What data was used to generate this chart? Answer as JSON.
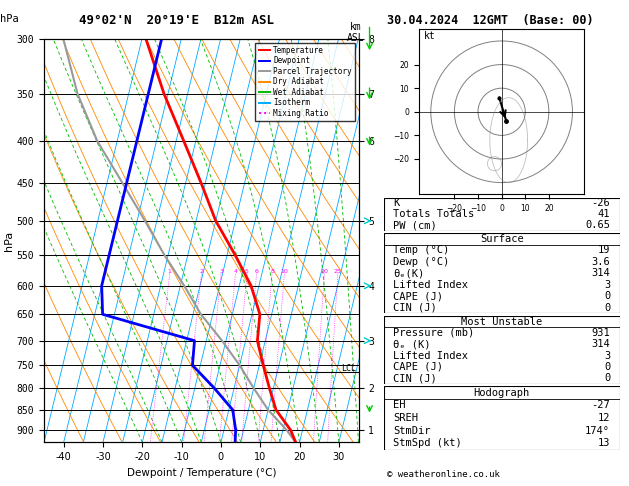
{
  "title_left": "49°02'N  20°19'E  B12m ASL",
  "title_right": "30.04.2024  12GMT  (Base: 00)",
  "xlabel": "Dewpoint / Temperature (°C)",
  "ylabel_left": "hPa",
  "pressure_levels": [
    300,
    350,
    400,
    450,
    500,
    550,
    600,
    650,
    700,
    750,
    800,
    850,
    900
  ],
  "temp_xlim": [
    -45,
    35
  ],
  "km_ticks": [
    1,
    2,
    3,
    4,
    5,
    6,
    7,
    8
  ],
  "km_pressures": [
    900,
    800,
    700,
    600,
    500,
    400,
    350,
    300
  ],
  "legend_items": [
    {
      "label": "Temperature",
      "color": "#ff0000",
      "style": "-"
    },
    {
      "label": "Dewpoint",
      "color": "#0000ff",
      "style": "-"
    },
    {
      "label": "Parcel Trajectory",
      "color": "#999999",
      "style": "-"
    },
    {
      "label": "Dry Adiabat",
      "color": "#ff8800",
      "style": "-"
    },
    {
      "label": "Wet Adiabat",
      "color": "#00bb00",
      "style": "-"
    },
    {
      "label": "Isotherm",
      "color": "#00aaff",
      "style": "-"
    },
    {
      "label": "Mixing Ratio",
      "color": "#ff00ff",
      "style": ":"
    }
  ],
  "temp_profile_p": [
    931,
    900,
    850,
    800,
    750,
    700,
    650,
    600,
    550,
    500,
    450,
    400,
    350,
    300
  ],
  "temp_profile_t": [
    19,
    17,
    12,
    9,
    6,
    3,
    2,
    -2,
    -8,
    -15,
    -21,
    -28,
    -36,
    -44
  ],
  "dewp_profile_p": [
    931,
    900,
    850,
    800,
    750,
    700,
    650,
    600,
    550,
    500,
    450,
    400,
    350,
    300
  ],
  "dewp_profile_t": [
    3.6,
    3,
    1,
    -5,
    -12,
    -13,
    -38,
    -40,
    -40,
    -40,
    -40,
    -40,
    -40,
    -40
  ],
  "parcel_profile_p": [
    931,
    900,
    850,
    800,
    750,
    700,
    650,
    600,
    550,
    500,
    450,
    400,
    350,
    300
  ],
  "parcel_profile_t": [
    19,
    16,
    10,
    5,
    0,
    -6,
    -13,
    -19,
    -26,
    -33,
    -41,
    -50,
    -58,
    -65
  ],
  "lcl_pressure": 764,
  "lcl_label": "LCL",
  "pmin": 300,
  "pmax": 931,
  "skew_factor": 22.0,
  "stats": {
    "K": -26,
    "Totals_Totals": 41,
    "PW_cm": 0.65,
    "Surface_Temp": 19,
    "Surface_Dewp": 3.6,
    "Surface_ThetaE": 314,
    "Surface_LI": 3,
    "Surface_CAPE": 0,
    "Surface_CIN": 0,
    "MU_Pressure": 931,
    "MU_ThetaE": 314,
    "MU_LI": 3,
    "MU_CAPE": 0,
    "MU_CIN": 0,
    "Hodo_EH": -27,
    "Hodo_SREH": 12,
    "Hodo_StmDir": 174,
    "Hodo_StmSpd": 13
  },
  "wind_barbs": [
    {
      "p": 931,
      "color": "#00cc00",
      "size": "large"
    },
    {
      "p": 850,
      "color": "#00cc00",
      "size": "small"
    },
    {
      "p": 700,
      "color": "#00cccc",
      "size": "medium"
    },
    {
      "p": 600,
      "color": "#00cccc",
      "size": "medium"
    },
    {
      "p": 500,
      "color": "#00cccc",
      "size": "medium"
    },
    {
      "p": 400,
      "color": "#00cc00",
      "size": "medium"
    },
    {
      "p": 350,
      "color": "#00cc00",
      "size": "medium"
    },
    {
      "p": 300,
      "color": "#00cc00",
      "size": "large"
    }
  ],
  "bg_color": "#ffffff",
  "isotherm_color": "#00aaff",
  "dry_adiabat_color": "#ff8800",
  "wet_adiabat_color": "#00bb00",
  "mixing_ratio_color": "#ff00ff",
  "temp_color": "#ff0000",
  "dewp_color": "#0000ff",
  "parcel_color": "#999999"
}
